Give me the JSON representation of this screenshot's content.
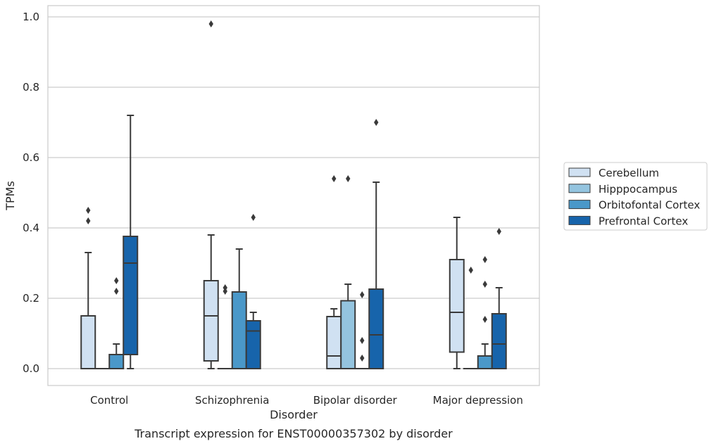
{
  "chart_data": {
    "type": "box",
    "caption": "Transcript expression for ENST00000357302 by disorder",
    "xlabel": "Disorder",
    "ylabel": "TPMs",
    "ylim": [
      -0.045,
      1.03
    ],
    "yticks": [
      0.0,
      0.2,
      0.4,
      0.6,
      0.8,
      1.0
    ],
    "ytick_labels": [
      "0.0",
      "0.2",
      "0.4",
      "0.6",
      "0.8",
      "1.0"
    ],
    "grid": "horizontal",
    "legend_position": "right",
    "categories": [
      "Control",
      "Schizophrenia",
      "Bipolar disorder",
      "Major depression"
    ],
    "series": [
      {
        "name": "Cerebellum",
        "color": "#d0e1f2",
        "boxes": [
          {
            "whislo": 0.0,
            "q1": 0.0,
            "med": 0.0,
            "q3": 0.15,
            "whishi": 0.33,
            "fliers": [
              0.42,
              0.45
            ]
          },
          {
            "whislo": 0.0,
            "q1": 0.022,
            "med": 0.15,
            "q3": 0.25,
            "whishi": 0.38,
            "fliers": [
              0.98
            ]
          },
          {
            "whislo": 0.0,
            "q1": 0.0,
            "med": 0.036,
            "q3": 0.148,
            "whishi": 0.17,
            "fliers": [
              0.54
            ]
          },
          {
            "whislo": 0.0,
            "q1": 0.047,
            "med": 0.16,
            "q3": 0.31,
            "whishi": 0.43,
            "fliers": []
          }
        ]
      },
      {
        "name": "Hipppocampus",
        "color": "#94c4df",
        "boxes": [
          {
            "whislo": 0.0,
            "q1": 0.0,
            "med": 0.0,
            "q3": 0.0,
            "whishi": 0.0,
            "fliers": []
          },
          {
            "whislo": 0.0,
            "q1": 0.0,
            "med": 0.0,
            "q3": 0.0,
            "whishi": 0.0,
            "fliers": [
              0.22,
              0.23
            ]
          },
          {
            "whislo": 0.0,
            "q1": 0.0,
            "med": 0.0,
            "q3": 0.193,
            "whishi": 0.24,
            "fliers": [
              0.54
            ]
          },
          {
            "whislo": 0.0,
            "q1": 0.0,
            "med": 0.0,
            "q3": 0.0,
            "whishi": 0.0,
            "fliers": [
              0.28
            ]
          }
        ]
      },
      {
        "name": "Orbitofontal Cortex",
        "color": "#4a98c9",
        "boxes": [
          {
            "whislo": 0.0,
            "q1": 0.0,
            "med": 0.0,
            "q3": 0.04,
            "whishi": 0.07,
            "fliers": [
              0.22,
              0.25
            ]
          },
          {
            "whislo": 0.0,
            "q1": 0.0,
            "med": 0.0,
            "q3": 0.218,
            "whishi": 0.34,
            "fliers": []
          },
          {
            "whislo": 0.0,
            "q1": 0.0,
            "med": 0.0,
            "q3": 0.0,
            "whishi": 0.0,
            "fliers": [
              0.03,
              0.08,
              0.21
            ]
          },
          {
            "whislo": 0.0,
            "q1": 0.0,
            "med": 0.0,
            "q3": 0.036,
            "whishi": 0.07,
            "fliers": [
              0.14,
              0.24,
              0.31
            ]
          }
        ]
      },
      {
        "name": "Prefrontal Cortex",
        "color": "#1764ab",
        "boxes": [
          {
            "whislo": 0.0,
            "q1": 0.04,
            "med": 0.3,
            "q3": 0.376,
            "whishi": 0.72,
            "fliers": []
          },
          {
            "whislo": 0.0,
            "q1": 0.0,
            "med": 0.107,
            "q3": 0.136,
            "whishi": 0.16,
            "fliers": [
              0.43
            ]
          },
          {
            "whislo": 0.0,
            "q1": 0.0,
            "med": 0.096,
            "q3": 0.226,
            "whishi": 0.53,
            "fliers": [
              0.7
            ]
          },
          {
            "whislo": 0.0,
            "q1": 0.0,
            "med": 0.07,
            "q3": 0.156,
            "whishi": 0.23,
            "fliers": [
              0.39
            ]
          }
        ]
      }
    ]
  }
}
